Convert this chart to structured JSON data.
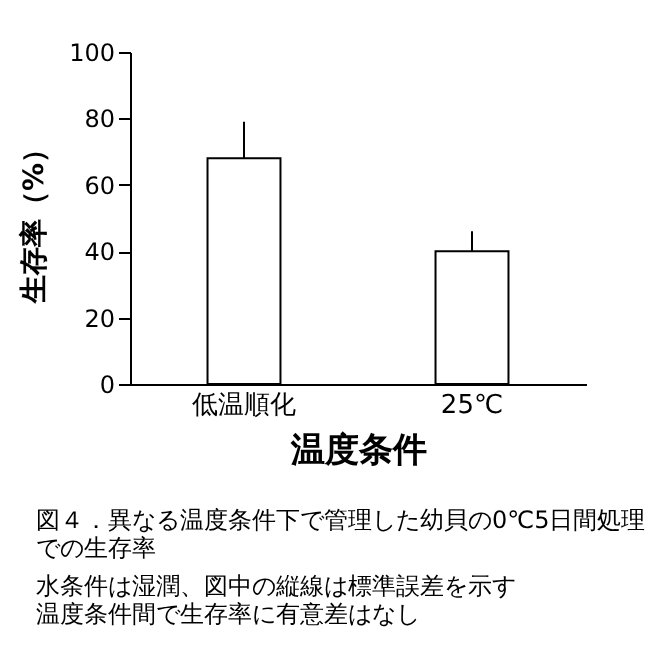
{
  "chart_data": {
    "type": "bar",
    "xlabel": "温度条件",
    "ylabel": "生存率（%）",
    "categories": [
      "低温順化",
      "25℃"
    ],
    "values": [
      68,
      40
    ],
    "errors": [
      [
        68,
        79
      ],
      [
        40,
        46
      ]
    ],
    "color": "#ffffff",
    "ylim": [
      0,
      100
    ],
    "yticks": [
      0,
      20,
      40,
      60,
      80,
      100
    ],
    "grid": false,
    "annotations": [
      "図４．異なる温度条件下で管理した幼貝の0℃5日間処理での生存率",
      "水条件は湿潤、図中の縦線は標準誤差を示す",
      "温度条件間で生存率に有意差はなし"
    ]
  }
}
